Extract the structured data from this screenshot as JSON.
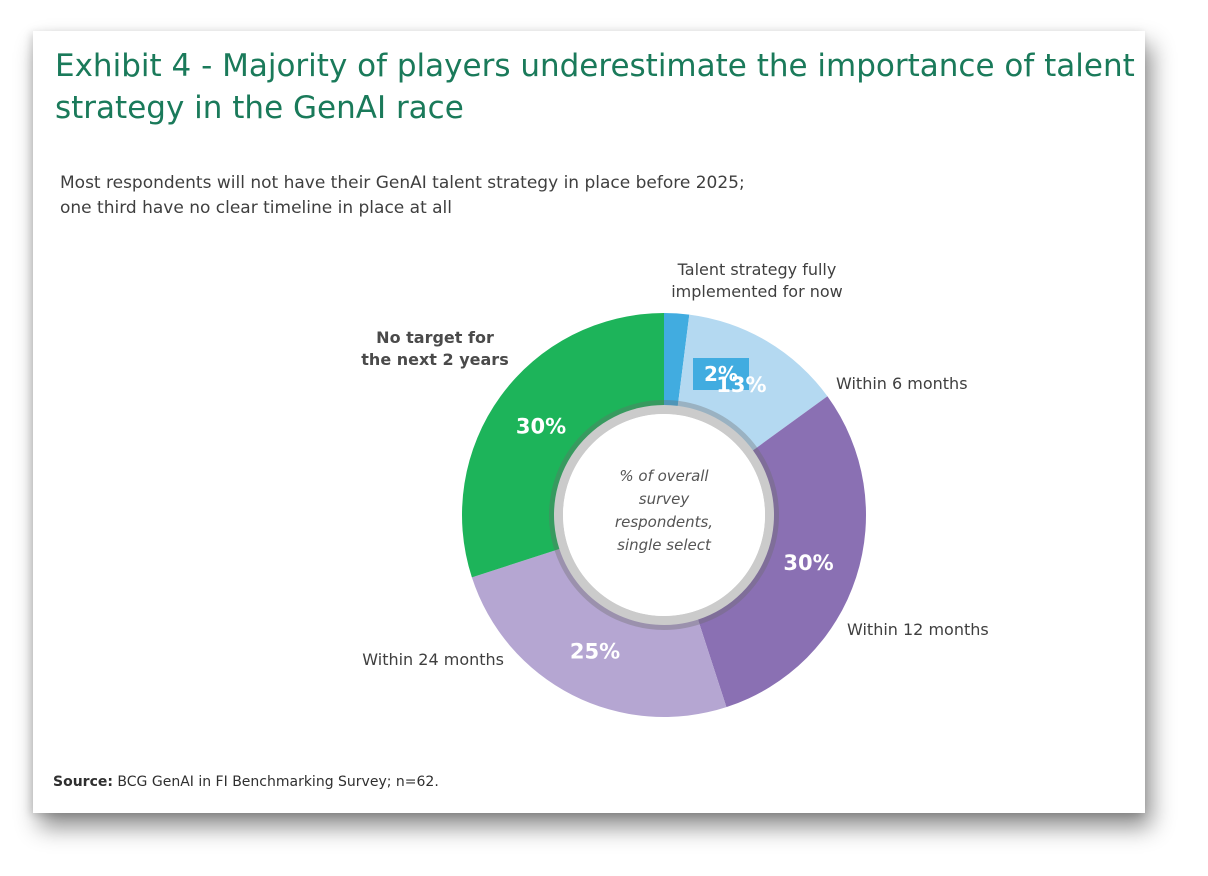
{
  "title": "Exhibit 4 - Majority of players underestimate the importance of talent strategy in the GenAI race",
  "subtitle_lines": [
    "Most respondents will not have their GenAI talent strategy in place before 2025;",
    "one third have no clear timeline in place at all"
  ],
  "source": {
    "label": "Source:",
    "text": "BCG GenAI in FI Benchmarking Survey; n=62."
  },
  "chart_data": {
    "type": "pie",
    "variant": "donut",
    "center_label": [
      "% of overall",
      "survey",
      "respondents,",
      "single select"
    ],
    "slices": [
      {
        "label": [
          "Talent strategy fully",
          "implemented for now"
        ],
        "value": 2,
        "value_label": "2%",
        "color": "#41ace0",
        "emphasis": false
      },
      {
        "label": [
          "Within 6 months"
        ],
        "value": 13,
        "value_label": "13%",
        "color": "#b4d9f1",
        "emphasis": false
      },
      {
        "label": [
          "Within 12 months"
        ],
        "value": 30,
        "value_label": "30%",
        "color": "#8a70b3",
        "emphasis": false
      },
      {
        "label": [
          "Within 24 months"
        ],
        "value": 25,
        "value_label": "25%",
        "color": "#b5a6d2",
        "emphasis": false
      },
      {
        "label": [
          "No target for",
          "the next 2 years"
        ],
        "value": 30,
        "value_label": "30%",
        "color": "#1db45a",
        "emphasis": true
      }
    ]
  }
}
